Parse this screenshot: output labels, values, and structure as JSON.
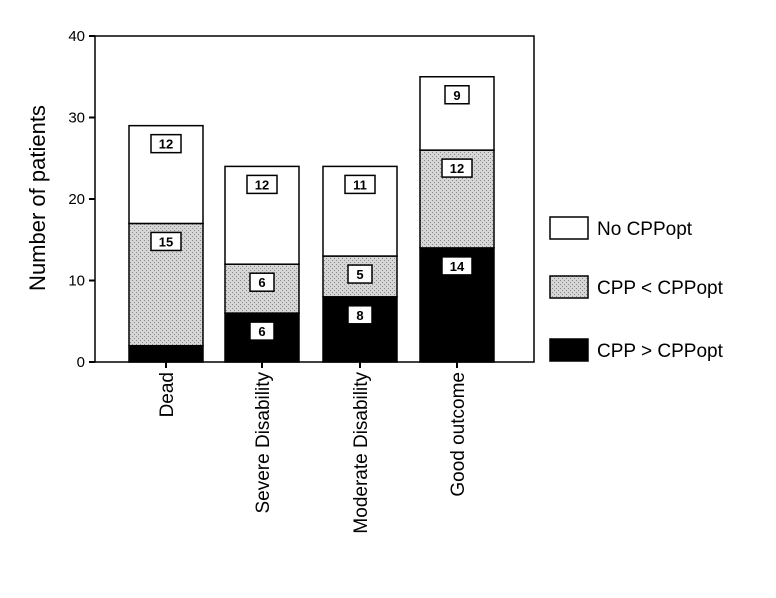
{
  "chart_data": {
    "type": "bar",
    "stacked": true,
    "categories": [
      "Dead",
      "Severe Disability",
      "Moderate Disability",
      "Good outcome"
    ],
    "series": [
      {
        "name": "CPP > CPPopt",
        "values": [
          2,
          6,
          8,
          14
        ],
        "labels": [
          "",
          "6",
          "8",
          "14"
        ],
        "color": "#000000"
      },
      {
        "name": "CPP < CPPopt",
        "values": [
          15,
          6,
          5,
          12
        ],
        "labels": [
          "15",
          "6",
          "5",
          "12"
        ],
        "color": "#cfcfcf"
      },
      {
        "name": "No CPPopt",
        "values": [
          12,
          12,
          11,
          9
        ],
        "labels": [
          "12",
          "12",
          "11",
          "9"
        ],
        "color": "#ffffff"
      }
    ],
    "legend_order": [
      "No CPPopt",
      "CPP < CPPopt",
      "CPP > CPPopt"
    ],
    "ylabel": "Number of patients",
    "xlabel": "",
    "ylim": [
      0,
      40
    ],
    "yticks": [
      "0",
      "10",
      "20",
      "30",
      "40"
    ],
    "legend_position": "right",
    "grid": false
  }
}
